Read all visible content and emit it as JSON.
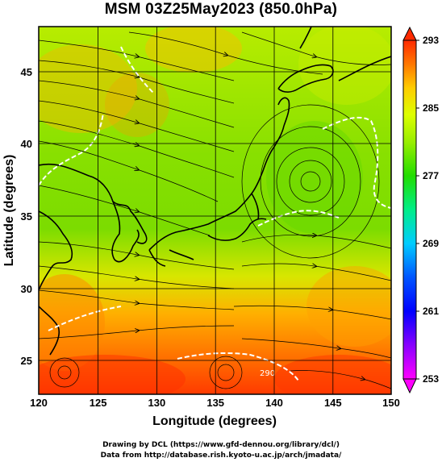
{
  "title": "MSM 03Z25May2023 (850.0hPa)",
  "map": {
    "x_axis": {
      "label": "Longitude (degrees)",
      "min": 120,
      "max": 150,
      "ticks": [
        "120",
        "125",
        "130",
        "135",
        "140",
        "145",
        "150"
      ]
    },
    "y_axis": {
      "label": "Latitude  (degrees)",
      "min": 22.5,
      "max": 48,
      "ticks": [
        "25",
        "30",
        "35",
        "40",
        "45"
      ]
    },
    "field": "temperature (color shading) with wind streamlines",
    "colorbar": {
      "min": 253,
      "max": 293,
      "ticks": [
        "293",
        "285",
        "277",
        "269",
        "261",
        "253"
      ],
      "colors": [
        "#ff00ff",
        "#8800ff",
        "#0000ff",
        "#0066ff",
        "#00ccff",
        "#00ff66",
        "#22dd00",
        "#88ee00",
        "#ccff00",
        "#ffcc00",
        "#ff8800",
        "#ff4400",
        "#ff2200"
      ]
    },
    "contour_label": "290"
  },
  "credits": {
    "line1": "Drawing by DCL (https://www.gfd-dennou.org/library/dcl/)",
    "line2": "Data from http://database.rish.kyoto-u.ac.jp/arch/jmadata/"
  }
}
